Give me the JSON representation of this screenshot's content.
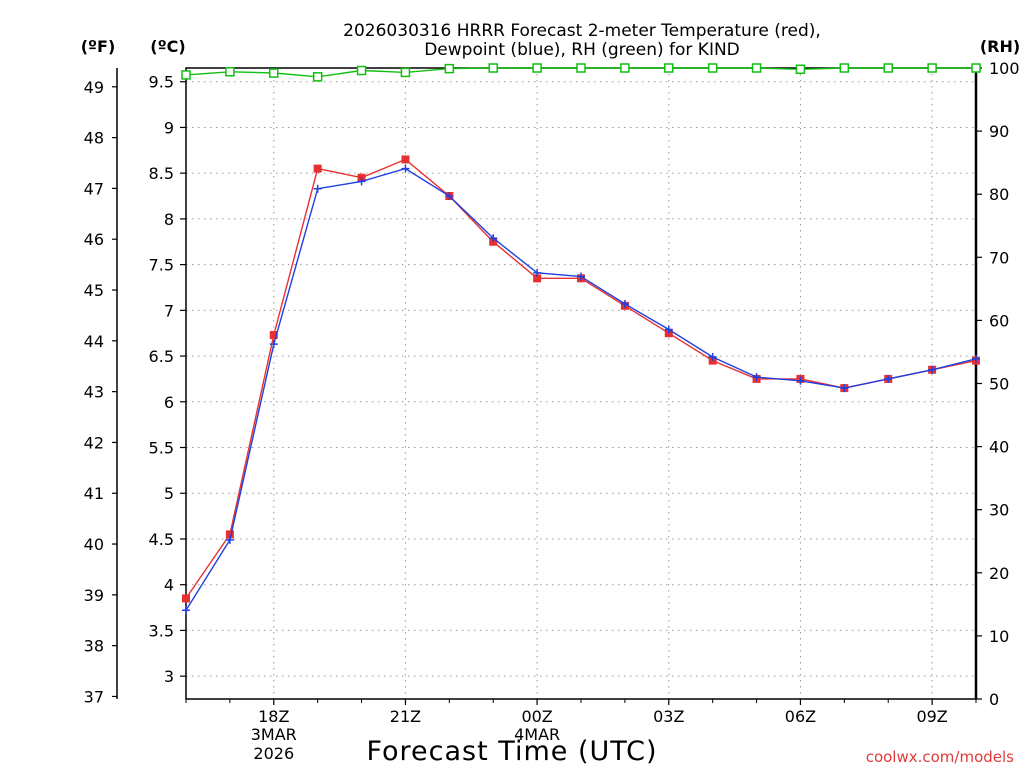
{
  "title": {
    "line1": "2026030316 HRRR Forecast 2-meter Temperature (red),",
    "line2": "Dewpoint (blue), RH (green) for KIND"
  },
  "units": {
    "fahrenheit": "(ºF)",
    "celsius": "(ºC)",
    "rh": "(RH)"
  },
  "xaxis": {
    "label": "Forecast Time (UTC)",
    "ticks": [
      {
        "label": "18Z",
        "hour": 18,
        "sub1": "3MAR",
        "sub2": "2026"
      },
      {
        "label": "21Z",
        "hour": 21
      },
      {
        "label": "00Z",
        "hour": 24,
        "sub1": "4MAR"
      },
      {
        "label": "03Z",
        "hour": 27
      },
      {
        "label": "06Z",
        "hour": 30
      },
      {
        "label": "09Z",
        "hour": 33
      }
    ]
  },
  "credit": "coolwx.com/models",
  "colors": {
    "temperature": "#e83030",
    "dewpoint": "#2040e0",
    "rh": "#10c010",
    "grid": "#9a9a9a"
  },
  "chart_data": {
    "type": "line",
    "x_unit": "hour (UTC, from 00Z 3 Mar 2026)",
    "xlim": [
      16,
      34
    ],
    "y_left_celsius": {
      "lim": [
        2.75,
        9.65
      ],
      "ticks": [
        3,
        3.5,
        4,
        4.5,
        5,
        5.5,
        6,
        6.5,
        7,
        7.5,
        8,
        8.5,
        9,
        9.5
      ]
    },
    "y_left_fahrenheit": {
      "lim": [
        36.95,
        49.37
      ],
      "ticks": [
        37,
        38,
        39,
        40,
        41,
        42,
        43,
        44,
        45,
        46,
        47,
        48,
        49
      ]
    },
    "y_right_rh": {
      "lim": [
        0,
        100
      ],
      "ticks": [
        0,
        10,
        20,
        30,
        40,
        50,
        60,
        70,
        80,
        90,
        100
      ]
    },
    "x": [
      16,
      17,
      18,
      19,
      20,
      21,
      22,
      23,
      24,
      25,
      26,
      27,
      28,
      29,
      30,
      31,
      32,
      33,
      34
    ],
    "series": [
      {
        "name": "Temperature",
        "unit": "C",
        "color": "#e83030",
        "marker": "square",
        "values": [
          3.85,
          4.55,
          6.73,
          8.55,
          8.45,
          8.65,
          8.25,
          7.75,
          7.35,
          7.35,
          7.05,
          6.75,
          6.45,
          6.25,
          6.25,
          6.15,
          6.25,
          6.35,
          6.45
        ]
      },
      {
        "name": "Dewpoint",
        "unit": "C",
        "color": "#2040e0",
        "marker": "plus",
        "values": [
          3.72,
          4.49,
          6.63,
          8.33,
          8.41,
          8.55,
          8.25,
          7.79,
          7.41,
          7.37,
          7.07,
          6.79,
          6.49,
          6.27,
          6.23,
          6.15,
          6.25,
          6.35,
          6.47
        ]
      },
      {
        "name": "RH",
        "unit": "%",
        "color": "#10c010",
        "marker": "open-square",
        "values": [
          98.9,
          99.4,
          99.2,
          98.6,
          99.6,
          99.3,
          99.9,
          100,
          100,
          100,
          100,
          100,
          100,
          100,
          99.8,
          100,
          100,
          100,
          100
        ]
      }
    ]
  }
}
